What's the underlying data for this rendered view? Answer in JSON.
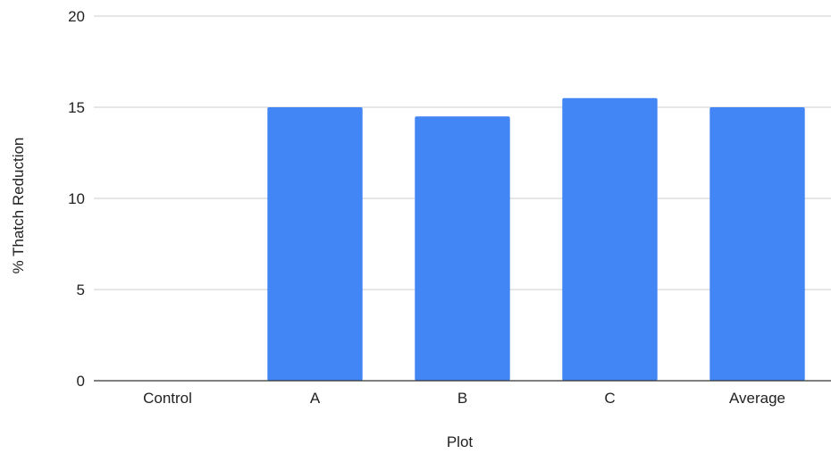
{
  "chart_data": {
    "type": "bar",
    "title": "",
    "xlabel": "Plot",
    "ylabel": "% Thatch Reduction",
    "categories": [
      "Control",
      "A",
      "B",
      "C",
      "Average"
    ],
    "values": [
      0,
      15,
      14.5,
      15.5,
      15
    ],
    "ylim": [
      0,
      20
    ],
    "yticks": [
      0,
      5,
      10,
      15,
      20
    ],
    "grid": true,
    "legend": "none",
    "bar_color": "#4285F4"
  }
}
